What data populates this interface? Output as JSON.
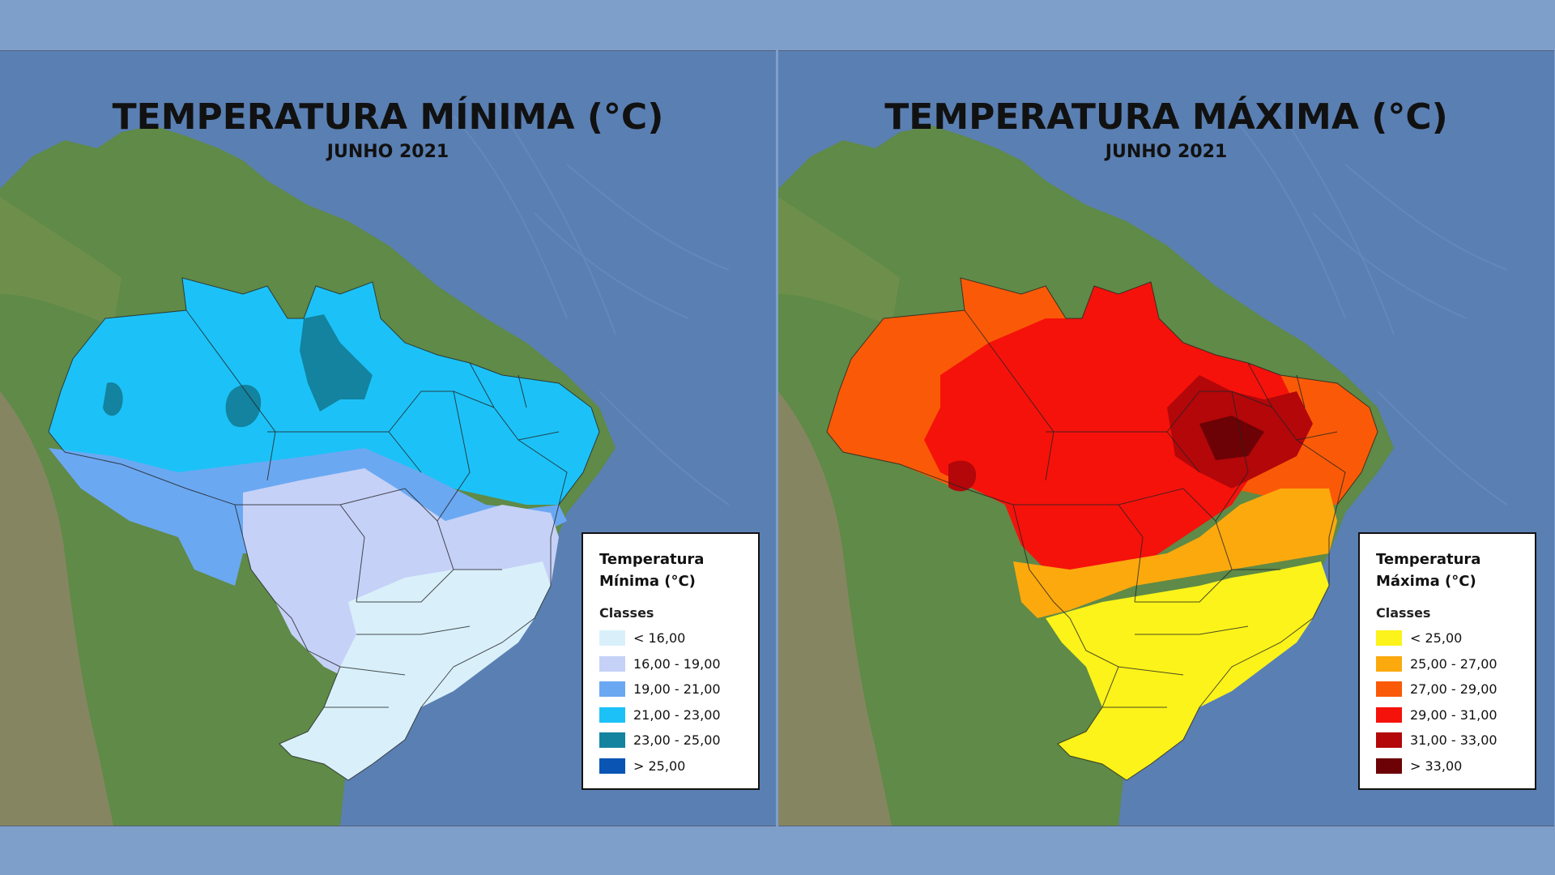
{
  "colors": {
    "page_background": "#7f9fcb",
    "ocean": "#5a7fb2",
    "land_green": "#5f8a47",
    "land_brown": "#9b8e6c"
  },
  "left": {
    "title": "TEMPERATURA MÍNIMA (°C)",
    "subtitle": "JUNHO 2021",
    "legend": {
      "title_line1": "Temperatura",
      "title_line2": "Mínima (°C)",
      "classes_label": "Classes",
      "items": [
        {
          "label": "< 16,00",
          "color": "#d9f0fb"
        },
        {
          "label": "16,00 - 19,00",
          "color": "#c5d1f7"
        },
        {
          "label": "19,00 - 21,00",
          "color": "#6ba8f2"
        },
        {
          "label": "21,00 - 23,00",
          "color": "#1cc2f7"
        },
        {
          "label": "23,00 - 25,00",
          "color": "#13839f"
        },
        {
          "label": "> 25,00",
          "color": "#0a55b4"
        }
      ]
    }
  },
  "right": {
    "title": "TEMPERATURA MÁXIMA (°C)",
    "subtitle": "JUNHO 2021",
    "legend": {
      "title_line1": "Temperatura",
      "title_line2": "Máxima (°C)",
      "classes_label": "Classes",
      "items": [
        {
          "label": "< 25,00",
          "color": "#fbf31a"
        },
        {
          "label": "25,00 - 27,00",
          "color": "#fca90e"
        },
        {
          "label": "27,00 - 29,00",
          "color": "#fa5a07"
        },
        {
          "label": "29,00 - 31,00",
          "color": "#f5120b"
        },
        {
          "label": "31,00 - 33,00",
          "color": "#b3070a"
        },
        {
          "label": "> 33,00",
          "color": "#6c0205"
        }
      ]
    }
  }
}
